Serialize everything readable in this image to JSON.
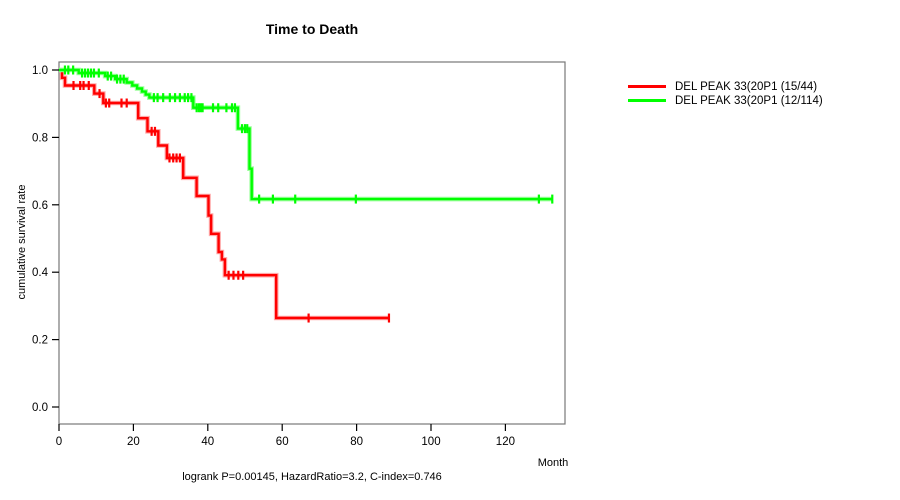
{
  "title": "Time to Death",
  "x_axis": {
    "label": "Month",
    "ticks": [
      0,
      20,
      40,
      60,
      80,
      100,
      120
    ],
    "range": [
      0,
      136
    ]
  },
  "y_axis": {
    "label": "cumulative survival rate",
    "ticks": [
      "1.0",
      "0.8",
      "0.6",
      "0.4",
      "0.2",
      "0.0"
    ],
    "range": [
      0,
      1
    ]
  },
  "footer": "logrank P=0.00145, HazardRatio=3.2, C-index=0.746",
  "legend": [
    {
      "label": "DEL PEAK 33(20P1 (15/44)",
      "color": "#ff0000"
    },
    {
      "label": "DEL PEAK 33(20P1 (12/114)",
      "color": "#00ff00"
    }
  ],
  "chart_data": {
    "type": "line",
    "subtype": "kaplan-meier-step-survival",
    "title": "Time to Death",
    "xlabel": "Month",
    "ylabel": "cumulative survival rate",
    "xlim": [
      0,
      136
    ],
    "ylim": [
      0,
      1
    ],
    "grid": false,
    "legend_position": "right-outside",
    "annotation": "logrank P=0.00145, HazardRatio=3.2, C-index=0.746",
    "series": [
      {
        "name": "DEL PEAK 33(20P1 (15/44)",
        "events": "15/44",
        "color": "#ff0000",
        "halo_color": "#ffaaaa",
        "steps": [
          [
            0,
            1.0
          ],
          [
            0.8,
            0.977
          ],
          [
            1.6,
            0.954
          ],
          [
            9.5,
            0.93
          ],
          [
            11.9,
            0.902
          ],
          [
            21.3,
            0.857
          ],
          [
            23.8,
            0.818
          ],
          [
            26.7,
            0.776
          ],
          [
            29.0,
            0.739
          ],
          [
            33.4,
            0.68
          ],
          [
            37.0,
            0.626
          ],
          [
            40.2,
            0.568
          ],
          [
            40.9,
            0.514
          ],
          [
            42.9,
            0.46
          ],
          [
            43.8,
            0.438
          ],
          [
            44.6,
            0.391
          ],
          [
            58.4,
            0.264
          ]
        ],
        "end_month": 88.7,
        "censor_marks": [
          [
            3.9,
            0.954
          ],
          [
            5.7,
            0.954
          ],
          [
            6.6,
            0.954
          ],
          [
            8.0,
            0.954
          ],
          [
            10.9,
            0.93
          ],
          [
            12.6,
            0.902
          ],
          [
            13.5,
            0.902
          ],
          [
            16.8,
            0.902
          ],
          [
            18.2,
            0.902
          ],
          [
            24.9,
            0.818
          ],
          [
            25.8,
            0.818
          ],
          [
            29.7,
            0.739
          ],
          [
            30.7,
            0.739
          ],
          [
            31.6,
            0.739
          ],
          [
            32.5,
            0.739
          ],
          [
            45.6,
            0.391
          ],
          [
            46.9,
            0.391
          ],
          [
            48.2,
            0.391
          ],
          [
            49.5,
            0.391
          ],
          [
            67.1,
            0.264
          ],
          [
            88.7,
            0.264
          ]
        ]
      },
      {
        "name": "DEL PEAK 33(20P1 (12/114)",
        "events": "12/114",
        "color": "#00ff00",
        "halo_color": "#9dff9d",
        "steps": [
          [
            0,
            1.0
          ],
          [
            5.3,
            0.991
          ],
          [
            12.4,
            0.982
          ],
          [
            15.1,
            0.973
          ],
          [
            18.2,
            0.963
          ],
          [
            19.7,
            0.954
          ],
          [
            21.0,
            0.945
          ],
          [
            22.3,
            0.936
          ],
          [
            23.3,
            0.927
          ],
          [
            24.3,
            0.918
          ],
          [
            36.1,
            0.888
          ],
          [
            48.1,
            0.826
          ],
          [
            51.2,
            0.707
          ],
          [
            51.8,
            0.617
          ]
        ],
        "end_month": 132.6,
        "censor_marks": [
          [
            1.6,
            1.0
          ],
          [
            2.5,
            1.0
          ],
          [
            3.8,
            1.0
          ],
          [
            6.2,
            0.991
          ],
          [
            7.0,
            0.991
          ],
          [
            7.8,
            0.991
          ],
          [
            8.6,
            0.991
          ],
          [
            9.4,
            0.991
          ],
          [
            10.7,
            0.991
          ],
          [
            13.1,
            0.982
          ],
          [
            14.0,
            0.982
          ],
          [
            15.6,
            0.973
          ],
          [
            16.5,
            0.973
          ],
          [
            17.4,
            0.973
          ],
          [
            25.5,
            0.918
          ],
          [
            26.5,
            0.918
          ],
          [
            28.0,
            0.918
          ],
          [
            29.8,
            0.918
          ],
          [
            31.2,
            0.918
          ],
          [
            32.5,
            0.918
          ],
          [
            33.8,
            0.918
          ],
          [
            34.7,
            0.918
          ],
          [
            35.6,
            0.918
          ],
          [
            37.0,
            0.888
          ],
          [
            37.6,
            0.888
          ],
          [
            38.1,
            0.888
          ],
          [
            38.6,
            0.888
          ],
          [
            41.4,
            0.888
          ],
          [
            42.8,
            0.888
          ],
          [
            45.0,
            0.888
          ],
          [
            46.5,
            0.888
          ],
          [
            47.3,
            0.888
          ],
          [
            49.2,
            0.826
          ],
          [
            50.0,
            0.826
          ],
          [
            50.6,
            0.826
          ],
          [
            53.8,
            0.617
          ],
          [
            57.5,
            0.617
          ],
          [
            63.5,
            0.617
          ],
          [
            79.8,
            0.617
          ],
          [
            129.0,
            0.617
          ],
          [
            132.6,
            0.617
          ]
        ]
      }
    ]
  }
}
